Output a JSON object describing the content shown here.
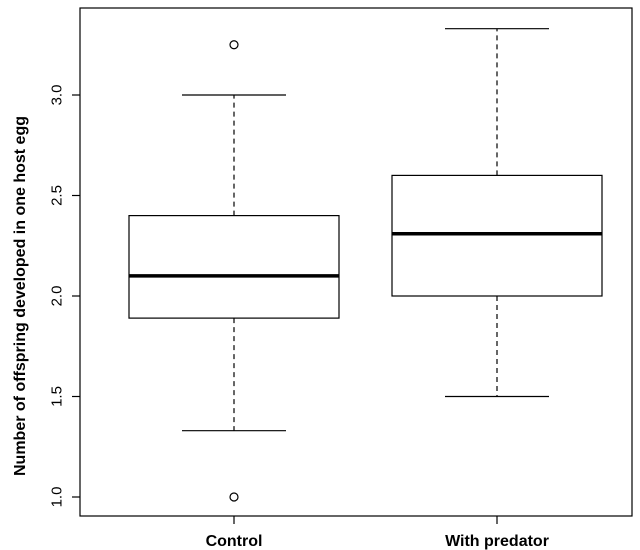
{
  "chart_data": {
    "type": "boxplot",
    "title": "",
    "xlabel": "",
    "ylabel": "Number of offspring developed in one host egg",
    "ylim": [
      0.95,
      3.42
    ],
    "yticks": [
      1.0,
      1.5,
      2.0,
      2.5,
      3.0
    ],
    "ytick_labels": [
      "1.0",
      "1.5",
      "2.0",
      "2.5",
      "3.0"
    ],
    "grid": false,
    "categories": [
      "Control",
      "With predator"
    ],
    "boxes": [
      {
        "whisker_low": 1.33,
        "q1": 1.89,
        "median": 2.1,
        "q3": 2.4,
        "whisker_high": 3.0,
        "outliers": [
          3.25,
          1.0
        ]
      },
      {
        "whisker_low": 1.5,
        "q1": 2.0,
        "median": 2.31,
        "q3": 2.6,
        "whisker_high": 3.33,
        "outliers": []
      }
    ]
  }
}
